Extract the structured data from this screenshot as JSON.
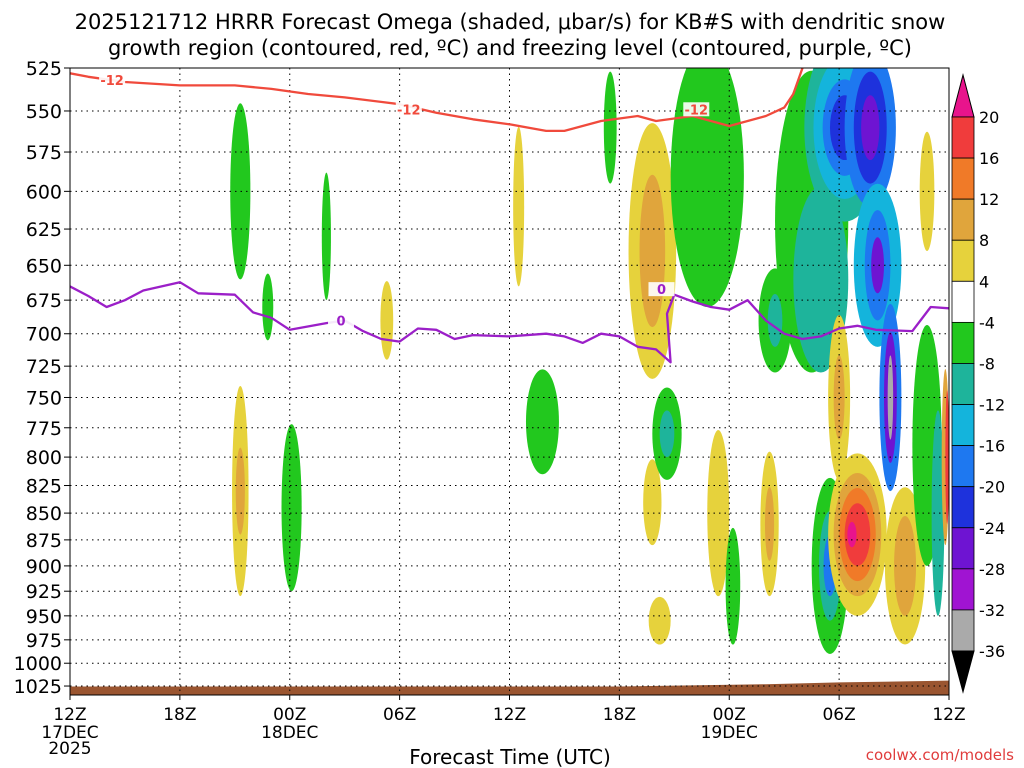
{
  "title": {
    "line1": "2025121712 HRRR Forecast Omega (shaded, μbar/s) for KB#S with dendritic snow",
    "line2": "growth region (contoured, red, ºC) and freezing level (contoured, purple, ºC)"
  },
  "xlabel": "Forecast Time (UTC)",
  "credit": "coolwx.com/models",
  "colors": {
    "dgz_contour": "#f04a3c",
    "freezing_contour": "#9b1fc8",
    "terrain": "#9a5530",
    "grid": "#000000"
  },
  "colorbar": {
    "labels": [
      "20",
      "16",
      "12",
      "8",
      "4",
      "-4",
      "-8",
      "-12",
      "-16",
      "-20",
      "-24",
      "-28",
      "-32",
      "-36"
    ],
    "bands": [
      {
        "from": 20,
        "to": 24,
        "color": "#e8148c"
      },
      {
        "from": 16,
        "to": 20,
        "color": "#f03c3c"
      },
      {
        "from": 12,
        "to": 16,
        "color": "#f07a28"
      },
      {
        "from": 8,
        "to": 12,
        "color": "#e0a53c"
      },
      {
        "from": 4,
        "to": 8,
        "color": "#e6d23c"
      },
      {
        "from": -4,
        "to": 4,
        "color": "#ffffff"
      },
      {
        "from": -8,
        "to": -4,
        "color": "#22c81e"
      },
      {
        "from": -12,
        "to": -8,
        "color": "#1eb49b"
      },
      {
        "from": -16,
        "to": -12,
        "color": "#14b4dc"
      },
      {
        "from": -20,
        "to": -16,
        "color": "#1e78f0"
      },
      {
        "from": -24,
        "to": -20,
        "color": "#1e32dc"
      },
      {
        "from": -28,
        "to": -24,
        "color": "#6e14d2"
      },
      {
        "from": -32,
        "to": -28,
        "color": "#a014d2"
      },
      {
        "from": -36,
        "to": -32,
        "color": "#aaaaaa"
      }
    ]
  },
  "chart_data": {
    "type": "heatmap",
    "title": "2025121712 HRRR Forecast Omega (shaded, μbar/s) for KB#S with dendritic snow growth region (contoured, red, ºC) and freezing level (contoured, purple, ºC)",
    "xlabel": "Forecast Time (UTC)",
    "ylabel": "",
    "x_range_hours": [
      0,
      48
    ],
    "x_ticks": [
      {
        "hour": 0,
        "label": "12Z",
        "sub": [
          "17DEC",
          "2025"
        ]
      },
      {
        "hour": 6,
        "label": "18Z",
        "sub": []
      },
      {
        "hour": 12,
        "label": "00Z",
        "sub": [
          "18DEC"
        ]
      },
      {
        "hour": 18,
        "label": "06Z",
        "sub": []
      },
      {
        "hour": 24,
        "label": "12Z",
        "sub": []
      },
      {
        "hour": 30,
        "label": "18Z",
        "sub": []
      },
      {
        "hour": 36,
        "label": "00Z",
        "sub": [
          "19DEC"
        ]
      },
      {
        "hour": 42,
        "label": "06Z",
        "sub": []
      },
      {
        "hour": 48,
        "label": "12Z",
        "sub": []
      }
    ],
    "y_levels_hpa": [
      525,
      550,
      575,
      600,
      625,
      650,
      675,
      700,
      725,
      750,
      775,
      800,
      825,
      850,
      875,
      900,
      925,
      950,
      975,
      1000,
      1025
    ],
    "y_range_hpa": [
      525,
      1035
    ],
    "y_scale": "log-pressure",
    "grid": true,
    "contours": [
      {
        "name": "-12",
        "label": "-12",
        "points": [
          [
            0,
            528
          ],
          [
            1,
            530
          ],
          [
            3,
            533
          ],
          [
            6,
            535
          ],
          [
            9,
            535
          ],
          [
            11,
            537
          ],
          [
            13,
            540
          ],
          [
            15,
            542
          ],
          [
            18,
            546
          ],
          [
            20,
            551
          ],
          [
            22,
            555
          ],
          [
            24,
            558
          ],
          [
            26,
            562
          ],
          [
            27,
            562
          ],
          [
            29,
            556
          ],
          [
            31,
            553
          ],
          [
            32,
            556
          ],
          [
            34,
            553
          ],
          [
            36,
            559
          ],
          [
            38,
            553
          ],
          [
            39,
            548
          ],
          [
            39.5,
            540
          ],
          [
            40,
            525
          ]
        ]
      },
      {
        "name": "0",
        "label": "0",
        "points": [
          [
            0,
            665
          ],
          [
            1,
            672
          ],
          [
            2,
            680
          ],
          [
            3,
            675
          ],
          [
            4,
            668
          ],
          [
            5,
            665
          ],
          [
            6,
            662
          ],
          [
            7,
            670
          ],
          [
            9,
            671
          ],
          [
            10,
            684
          ],
          [
            11,
            688
          ],
          [
            12,
            697
          ],
          [
            14,
            692
          ],
          [
            15,
            690
          ],
          [
            16,
            698
          ],
          [
            17,
            704
          ],
          [
            18,
            706
          ],
          [
            19,
            696
          ],
          [
            20,
            697
          ],
          [
            21,
            704
          ],
          [
            22,
            701
          ],
          [
            24,
            702
          ],
          [
            26,
            700
          ],
          [
            27,
            702
          ],
          [
            28,
            707
          ],
          [
            29,
            700
          ],
          [
            30,
            702
          ],
          [
            31,
            710
          ],
          [
            32,
            712
          ],
          [
            32.8,
            722
          ],
          [
            32.6,
            685
          ],
          [
            33,
            671
          ],
          [
            34,
            676
          ],
          [
            35,
            680
          ],
          [
            36,
            682
          ],
          [
            37,
            675
          ],
          [
            38,
            690
          ],
          [
            39,
            700
          ],
          [
            40,
            704
          ],
          [
            41,
            702
          ],
          [
            42,
            696
          ],
          [
            43,
            694
          ],
          [
            44,
            697
          ],
          [
            46,
            698
          ],
          [
            47,
            680
          ],
          [
            48,
            681
          ]
        ]
      }
    ],
    "omega_regions": [
      {
        "t": 9.3,
        "p": 600,
        "dt": 0.55,
        "dp": 60,
        "value": -6
      },
      {
        "t": 9.3,
        "p": 830,
        "dt": 0.45,
        "dp": 100,
        "value": 6
      },
      {
        "t": 9.3,
        "p": 830,
        "dt": 0.25,
        "dp": 40,
        "value": 10
      },
      {
        "t": 10.8,
        "p": 680,
        "dt": 0.3,
        "dp": 25,
        "value": -6
      },
      {
        "t": 12.1,
        "p": 845,
        "dt": 0.55,
        "dp": 80,
        "value": -6
      },
      {
        "t": 14.0,
        "p": 630,
        "dt": 0.25,
        "dp": 45,
        "value": -6
      },
      {
        "t": 17.3,
        "p": 690,
        "dt": 0.35,
        "dp": 30,
        "value": 6
      },
      {
        "t": 24.5,
        "p": 610,
        "dt": 0.3,
        "dp": 55,
        "value": 6
      },
      {
        "t": 25.8,
        "p": 770,
        "dt": 0.9,
        "dp": 45,
        "value": -6
      },
      {
        "t": 29.5,
        "p": 560,
        "dt": 0.35,
        "dp": 35,
        "value": -6
      },
      {
        "t": 31.8,
        "p": 640,
        "dt": 1.3,
        "dp": 95,
        "value": 6
      },
      {
        "t": 31.8,
        "p": 640,
        "dt": 0.7,
        "dp": 55,
        "value": 10
      },
      {
        "t": 31.8,
        "p": 840,
        "dt": 0.5,
        "dp": 40,
        "value": 6
      },
      {
        "t": 32.2,
        "p": 955,
        "dt": 0.6,
        "dp": 25,
        "value": 6
      },
      {
        "t": 32.6,
        "p": 780,
        "dt": 0.8,
        "dp": 40,
        "value": -6
      },
      {
        "t": 32.6,
        "p": 780,
        "dt": 0.4,
        "dp": 20,
        "value": -10
      },
      {
        "t": 34.8,
        "p": 590,
        "dt": 2.0,
        "dp": 90,
        "value": -6
      },
      {
        "t": 35.4,
        "p": 850,
        "dt": 0.6,
        "dp": 80,
        "value": 6
      },
      {
        "t": 36.2,
        "p": 920,
        "dt": 0.4,
        "dp": 60,
        "value": -6
      },
      {
        "t": 38.2,
        "p": 860,
        "dt": 0.5,
        "dp": 70,
        "value": 6
      },
      {
        "t": 38.2,
        "p": 860,
        "dt": 0.25,
        "dp": 35,
        "value": 10
      },
      {
        "t": 38.5,
        "p": 690,
        "dt": 0.9,
        "dp": 40,
        "value": -6
      },
      {
        "t": 38.5,
        "p": 690,
        "dt": 0.4,
        "dp": 20,
        "value": -10
      },
      {
        "t": 40.5,
        "p": 620,
        "dt": 2.0,
        "dp": 110,
        "value": -6
      },
      {
        "t": 41.0,
        "p": 660,
        "dt": 1.5,
        "dp": 70,
        "value": -10
      },
      {
        "t": 41.5,
        "p": 900,
        "dt": 1.0,
        "dp": 90,
        "value": -6
      },
      {
        "t": 41.5,
        "p": 900,
        "dt": 0.6,
        "dp": 55,
        "value": -10
      },
      {
        "t": 41.5,
        "p": 900,
        "dt": 0.35,
        "dp": 30,
        "value": -18
      },
      {
        "t": 42.3,
        "p": 560,
        "dt": 2.2,
        "dp": 60,
        "value": -10
      },
      {
        "t": 42.3,
        "p": 560,
        "dt": 1.7,
        "dp": 45,
        "value": -14
      },
      {
        "t": 42.3,
        "p": 560,
        "dt": 1.2,
        "dp": 30,
        "value": -18
      },
      {
        "t": 42.3,
        "p": 560,
        "dt": 0.8,
        "dp": 20,
        "value": -22
      },
      {
        "t": 42.0,
        "p": 750,
        "dt": 0.6,
        "dp": 70,
        "value": 6
      },
      {
        "t": 42.0,
        "p": 750,
        "dt": 0.3,
        "dp": 35,
        "value": 10
      },
      {
        "t": 43.0,
        "p": 870,
        "dt": 1.6,
        "dp": 80,
        "value": 6
      },
      {
        "t": 43.0,
        "p": 870,
        "dt": 1.3,
        "dp": 60,
        "value": 10
      },
      {
        "t": 43.0,
        "p": 870,
        "dt": 1.0,
        "dp": 45,
        "value": 14
      },
      {
        "t": 43.0,
        "p": 870,
        "dt": 0.7,
        "dp": 30,
        "value": 18
      },
      {
        "t": 42.7,
        "p": 870,
        "dt": 0.25,
        "dp": 12,
        "value": 22
      },
      {
        "t": 43.7,
        "p": 560,
        "dt": 1.4,
        "dp": 50,
        "value": -18
      },
      {
        "t": 43.7,
        "p": 560,
        "dt": 0.9,
        "dp": 35,
        "value": -22
      },
      {
        "t": 43.7,
        "p": 560,
        "dt": 0.5,
        "dp": 20,
        "value": -26
      },
      {
        "t": 44.1,
        "p": 650,
        "dt": 1.3,
        "dp": 60,
        "value": -14
      },
      {
        "t": 44.1,
        "p": 650,
        "dt": 0.7,
        "dp": 40,
        "value": -20
      },
      {
        "t": 44.1,
        "p": 650,
        "dt": 0.35,
        "dp": 20,
        "value": -26
      },
      {
        "t": 44.8,
        "p": 750,
        "dt": 0.6,
        "dp": 80,
        "value": -18
      },
      {
        "t": 44.8,
        "p": 750,
        "dt": 0.35,
        "dp": 55,
        "value": -26
      },
      {
        "t": 44.8,
        "p": 750,
        "dt": 0.15,
        "dp": 35,
        "value": -34
      },
      {
        "t": 44.8,
        "p": 740,
        "dt": 0.07,
        "dp": 18,
        "value": -38
      },
      {
        "t": 45.6,
        "p": 900,
        "dt": 1.1,
        "dp": 80,
        "value": 6
      },
      {
        "t": 45.6,
        "p": 900,
        "dt": 0.6,
        "dp": 50,
        "value": 10
      },
      {
        "t": 46.8,
        "p": 790,
        "dt": 0.8,
        "dp": 110,
        "value": -6
      },
      {
        "t": 46.8,
        "p": 600,
        "dt": 0.4,
        "dp": 40,
        "value": 6
      },
      {
        "t": 47.4,
        "p": 850,
        "dt": 0.35,
        "dp": 100,
        "value": -10
      },
      {
        "t": 47.8,
        "p": 800,
        "dt": 0.2,
        "dp": 80,
        "value": 10
      },
      {
        "t": 47.9,
        "p": 800,
        "dt": 0.1,
        "dp": 60,
        "value": 18
      }
    ]
  }
}
